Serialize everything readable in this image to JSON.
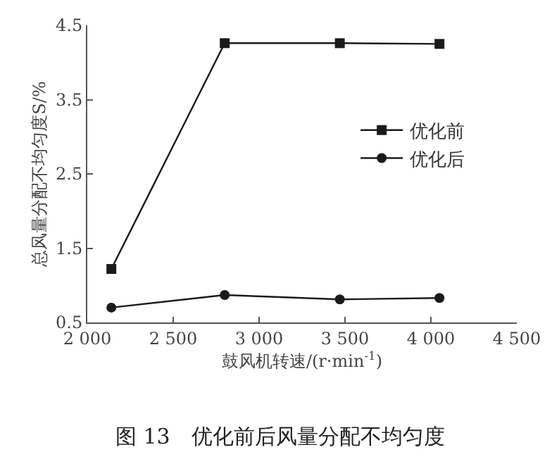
{
  "chart_data": {
    "type": "line",
    "title": "图 13　优化前后风量分配不均匀度",
    "xlabel": "鼓风机转速/(r·min$^{-1}$)",
    "ylabel": "总风量分配不均匀度S/%",
    "x": [
      2140,
      2800,
      3470,
      4050
    ],
    "series": [
      {
        "name": "优化前",
        "color": "#1a1a1a",
        "values": [
          1.22,
          4.26,
          4.26,
          4.25
        ],
        "marker": "square"
      },
      {
        "name": "优化后",
        "color": "#1a1a1a",
        "values": [
          0.7,
          0.87,
          0.81,
          0.83
        ],
        "marker": "circle"
      }
    ],
    "xlim": [
      2000,
      4500
    ],
    "xticks": [
      {
        "value": 2000,
        "label": "2 000"
      },
      {
        "value": 2500,
        "label": "2 500"
      },
      {
        "value": 3000,
        "label": "3 000"
      },
      {
        "value": 3500,
        "label": "3 500"
      },
      {
        "value": 4000,
        "label": "4 000"
      },
      {
        "value": 4500,
        "label": "4 500"
      }
    ],
    "ylim": [
      0.5,
      4.5
    ],
    "yticks": [
      0.5,
      1.5,
      2.5,
      3.5,
      4.5
    ],
    "legend": "right",
    "line_style": "solid"
  }
}
